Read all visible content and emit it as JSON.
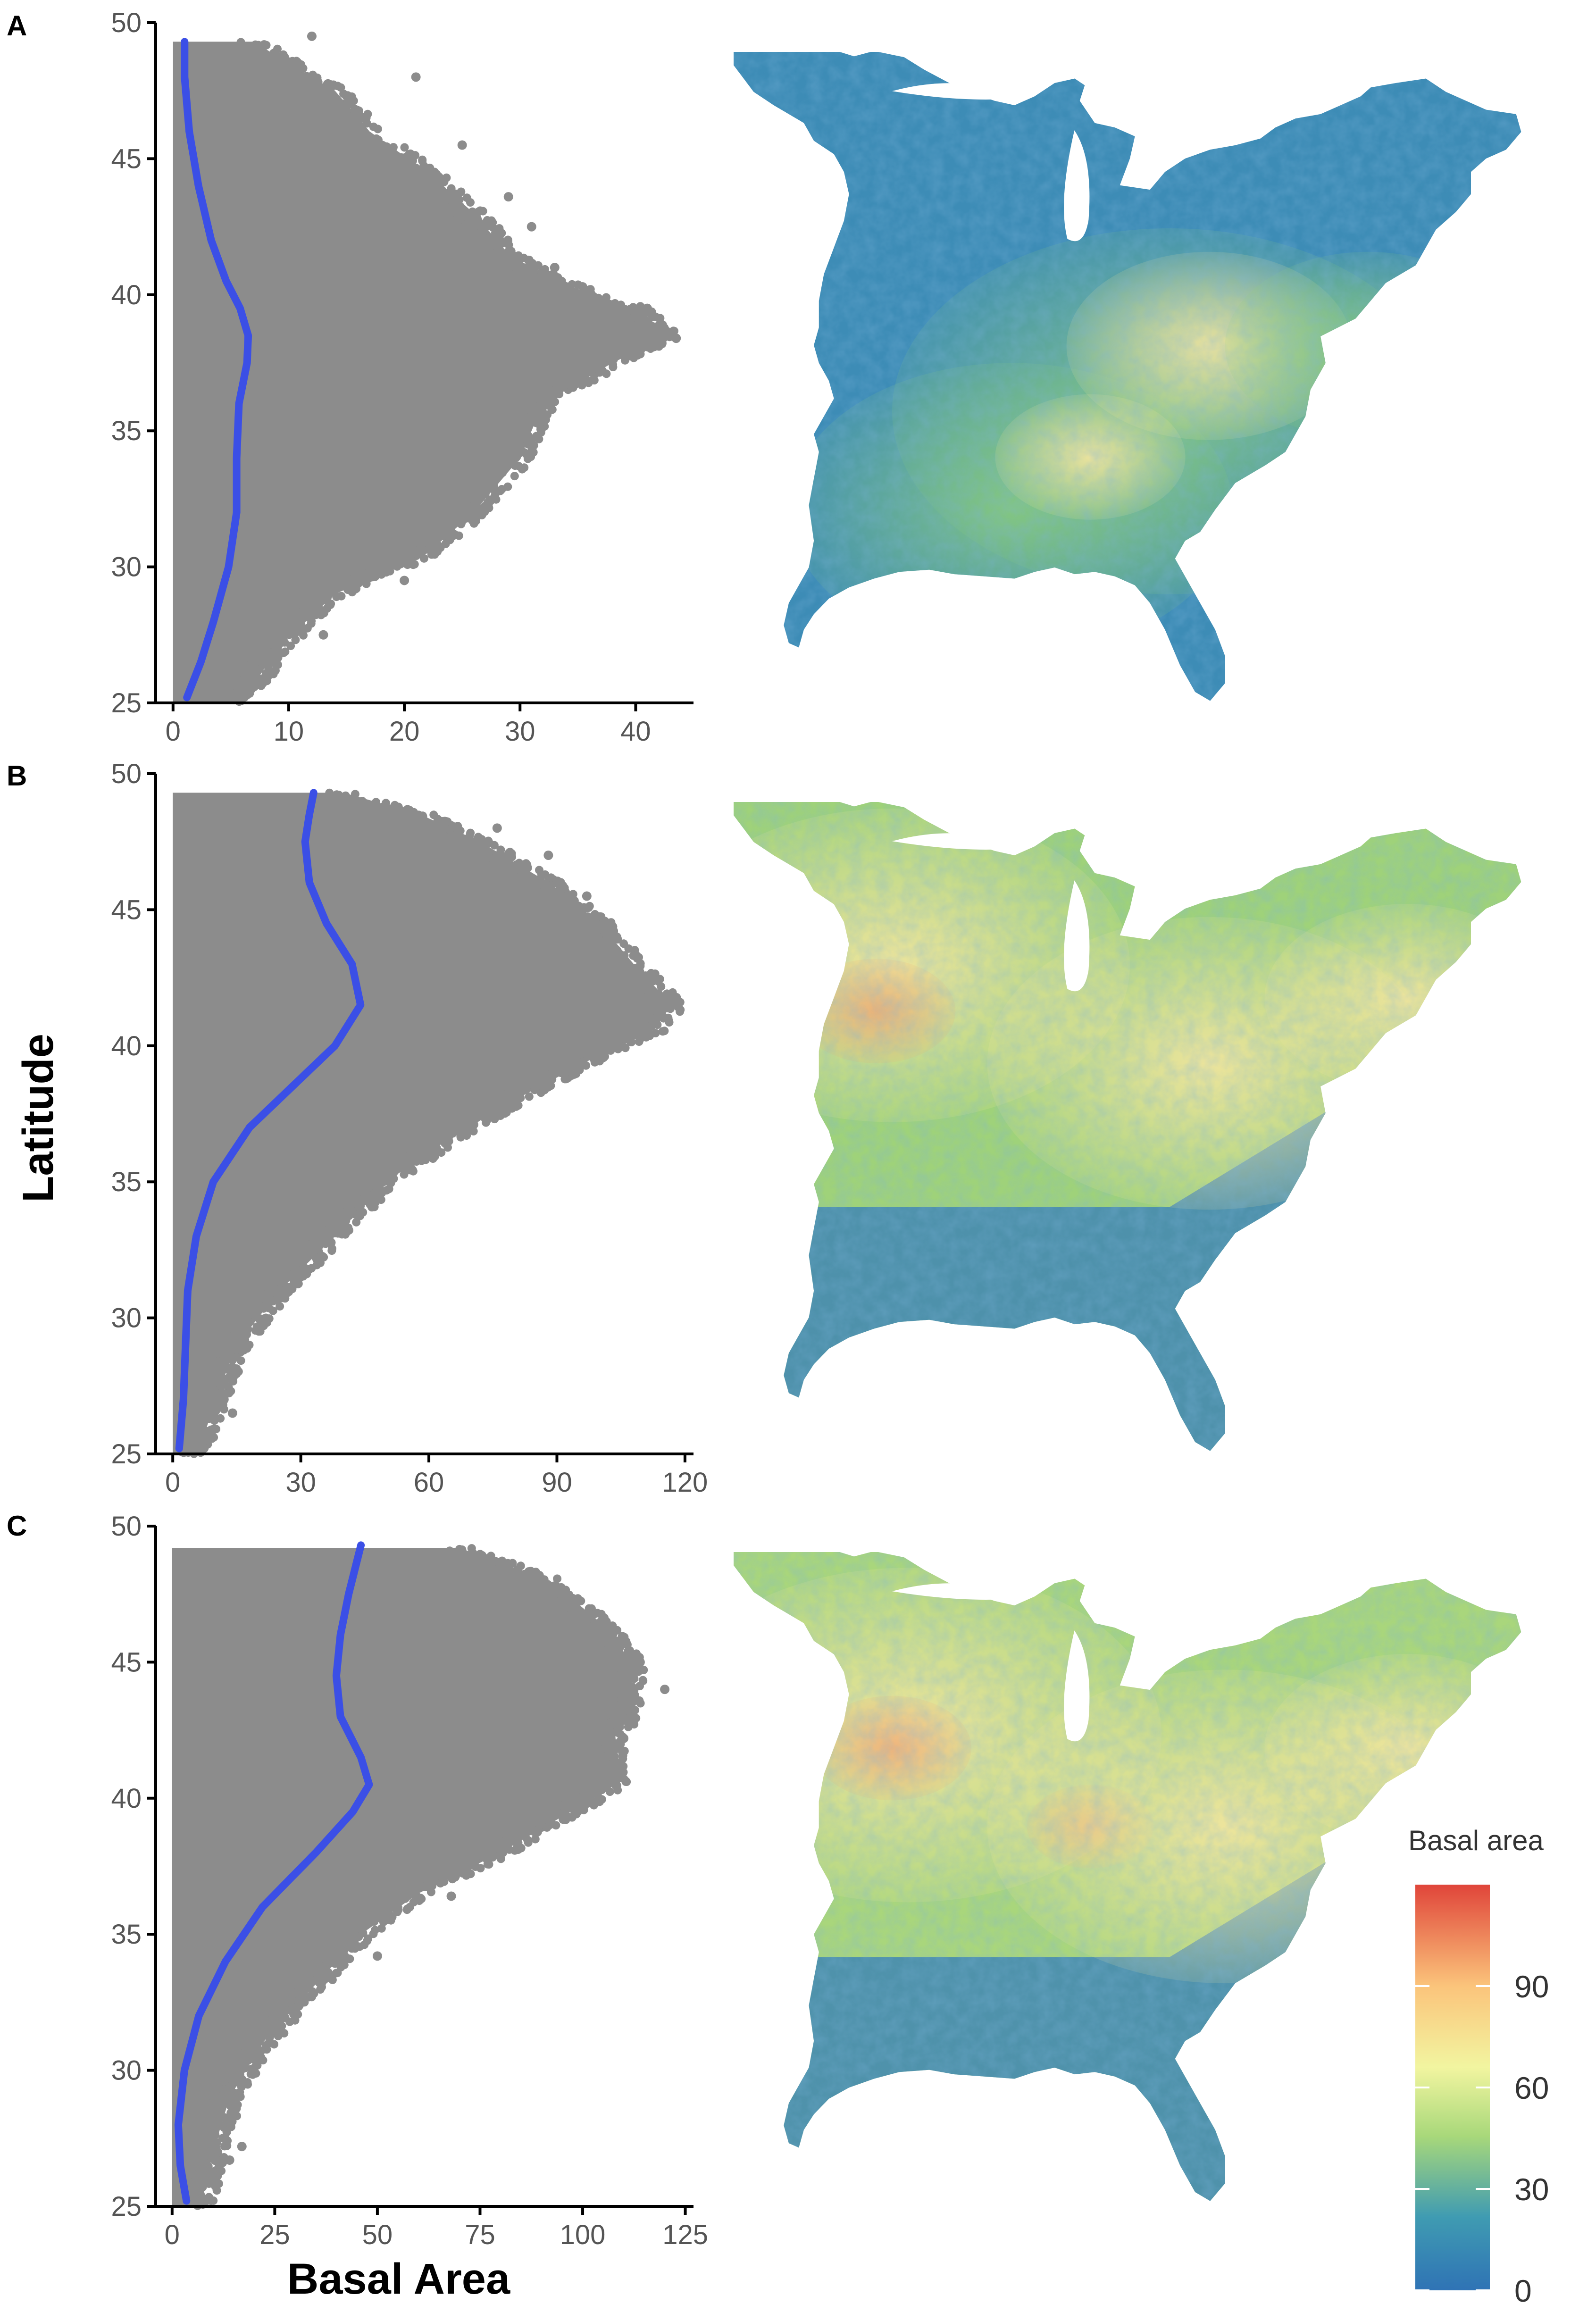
{
  "figure": {
    "ylabel": "Latitude",
    "xlabel": "Basal Area",
    "colors": {
      "points": "#8c8c8c",
      "smooth": "#3b4fe6",
      "axis": "#000000",
      "tick_text": "#555555",
      "colormap": [
        "#2f73b5",
        "#3f9bb2",
        "#a8d87a",
        "#f2f5a0",
        "#fbc47b",
        "#e0453a"
      ]
    },
    "legend": {
      "title": "Basal area",
      "labels": [
        "90",
        "60",
        "30",
        "0"
      ],
      "ticks": [
        90,
        60,
        30,
        0
      ],
      "range": [
        0,
        120
      ]
    }
  },
  "chart_data": [
    {
      "panel": "A",
      "type": "scatter",
      "points_visible": "dense gray point cloud",
      "xlim": [
        -1.5,
        45
      ],
      "ylim": [
        25,
        50
      ],
      "xticks": [
        0,
        10,
        20,
        30,
        40
      ],
      "xtick_labels": [
        "0",
        "10",
        "20",
        "30",
        "40"
      ],
      "yticks": [
        25,
        30,
        35,
        40,
        45,
        50
      ],
      "ytick_labels": [
        "25",
        "30",
        "35",
        "40",
        "45",
        "50"
      ],
      "cloud_right_edge": {
        "lat": [
          25,
          27,
          29,
          30.5,
          32,
          34,
          36,
          37.5,
          38.5,
          39.5,
          40.5,
          41.5,
          43,
          44.5,
          46,
          47.5,
          48.5,
          49.3
        ],
        "x": [
          6,
          9,
          14,
          22,
          26,
          30,
          32,
          38,
          43,
          40,
          33,
          29,
          26,
          22,
          17,
          14,
          10,
          7
        ]
      },
      "outlier_points": [
        [
          43.5,
          38.4
        ],
        [
          41,
          39.5
        ],
        [
          39,
          37.8
        ],
        [
          36,
          40
        ],
        [
          33,
          41
        ],
        [
          31,
          42.5
        ],
        [
          29,
          43.6
        ],
        [
          25,
          45.5
        ],
        [
          21,
          48
        ],
        [
          12,
          49.5
        ],
        [
          20,
          29.5
        ],
        [
          27,
          32.8
        ],
        [
          29,
          36.5
        ],
        [
          13,
          27.5
        ],
        [
          7,
          25.6
        ]
      ],
      "smooth_line": {
        "lat": [
          25.2,
          26.5,
          28,
          30,
          32,
          34,
          36,
          37.5,
          38.5,
          39.5,
          40.5,
          42,
          44,
          46,
          48,
          49.3
        ],
        "x": [
          1.2,
          2.4,
          3.5,
          4.8,
          5.5,
          5.5,
          5.7,
          6.4,
          6.5,
          5.8,
          4.6,
          3.3,
          2.2,
          1.4,
          1.0,
          1.0
        ]
      }
    },
    {
      "panel": "B",
      "type": "scatter",
      "points_visible": "dense gray point cloud",
      "xlim": [
        -4,
        122
      ],
      "ylim": [
        25,
        50
      ],
      "xticks": [
        0,
        30,
        60,
        90,
        120
      ],
      "xtick_labels": [
        "0",
        "30",
        "60",
        "90",
        "120"
      ],
      "yticks": [
        25,
        30,
        35,
        40,
        45,
        50
      ],
      "ytick_labels": [
        "25",
        "30",
        "35",
        "40",
        "45",
        "50"
      ],
      "cloud_right_edge": {
        "lat": [
          25,
          27,
          29,
          31,
          33,
          35,
          36.5,
          38,
          39.5,
          40.5,
          41.5,
          43,
          44.5,
          46,
          47.5,
          48.5,
          49.3
        ],
        "x": [
          6,
          10,
          15,
          25,
          38,
          50,
          64,
          80,
          98,
          112,
          117,
          108,
          100,
          88,
          72,
          58,
          40
        ]
      },
      "outlier_points": [
        [
          116,
          41.4
        ],
        [
          112,
          41.8
        ],
        [
          110,
          40.8
        ],
        [
          104,
          43.5
        ],
        [
          97,
          45.5
        ],
        [
          88,
          47
        ],
        [
          76,
          48
        ],
        [
          12,
          27
        ],
        [
          14,
          26.5
        ],
        [
          56,
          36
        ],
        [
          72,
          37.6
        ]
      ],
      "smooth_line": {
        "lat": [
          25.2,
          27,
          29,
          31,
          33,
          35,
          37,
          38.5,
          40,
          41.5,
          43,
          44.5,
          46,
          47.5,
          48.5,
          49.3
        ],
        "x": [
          1.5,
          2.5,
          3.0,
          3.5,
          5.5,
          9.5,
          18,
          28,
          38,
          44,
          42,
          36,
          32,
          31,
          32,
          33
        ]
      }
    },
    {
      "panel": "C",
      "type": "scatter",
      "points_visible": "dense gray point cloud",
      "xlim": [
        -4,
        127
      ],
      "ylim": [
        25,
        50
      ],
      "xticks": [
        0,
        25,
        50,
        75,
        100,
        125
      ],
      "xtick_labels": [
        "0",
        "25",
        "50",
        "75",
        "100",
        "125"
      ],
      "yticks": [
        25,
        30,
        35,
        40,
        45,
        50
      ],
      "ytick_labels": [
        "25",
        "30",
        "35",
        "40",
        "45",
        "50"
      ],
      "cloud_right_edge": {
        "lat": [
          25,
          27,
          29,
          31,
          33,
          35,
          36.5,
          38,
          39.5,
          40.5,
          42,
          43.5,
          45,
          46.5,
          48,
          49.2
        ],
        "x": [
          7,
          10,
          14,
          22,
          34,
          46,
          60,
          80,
          97,
          108,
          107,
          112,
          112,
          104,
          92,
          70
        ]
      },
      "outlier_points": [
        [
          120,
          44
        ],
        [
          114,
          45
        ],
        [
          106,
          44.8
        ],
        [
          110,
          42.2
        ],
        [
          96,
          46.2
        ],
        [
          17,
          27.2
        ],
        [
          14,
          26.7
        ],
        [
          50,
          34.2
        ],
        [
          68,
          36.4
        ]
      ],
      "smooth_line": {
        "lat": [
          25.2,
          26.5,
          28,
          30,
          32,
          34,
          36,
          38,
          39.5,
          40.5,
          41.5,
          43,
          44.5,
          46,
          47.5,
          49.3
        ],
        "x": [
          3.5,
          2.0,
          1.5,
          3.0,
          6.5,
          13,
          22,
          35,
          44,
          48,
          46,
          41,
          40,
          41,
          43,
          46
        ]
      }
    }
  ]
}
